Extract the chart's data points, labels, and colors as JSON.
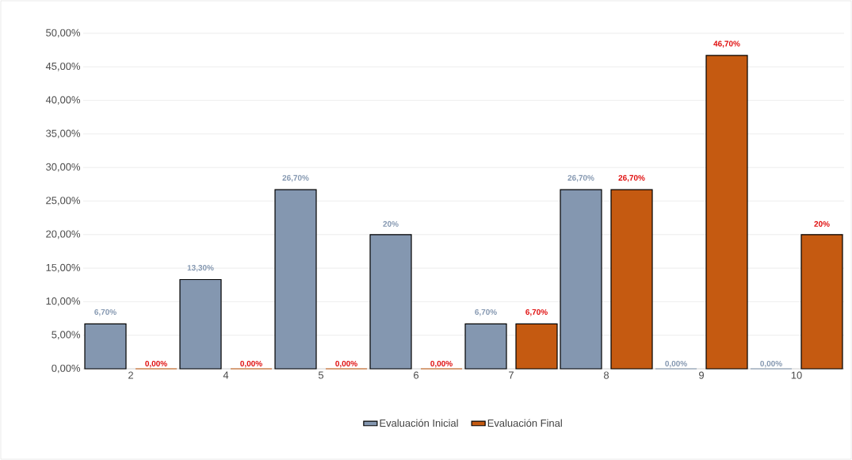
{
  "chart_data": {
    "type": "bar",
    "categories": [
      "2",
      "4",
      "5",
      "6",
      "7",
      "8",
      "9",
      "10"
    ],
    "series": [
      {
        "name": "Evaluación Inicial",
        "color": "#8497b0",
        "values": [
          6.7,
          13.3,
          26.7,
          20,
          6.7,
          26.7,
          0,
          0
        ],
        "value_labels": [
          "6,70%",
          "13,30%",
          "26,70%",
          "20%",
          "6,70%",
          "26,70%",
          "0,00%",
          "0,00%"
        ]
      },
      {
        "name": "Evaluación Final",
        "color": "#c55a11",
        "values": [
          0,
          0,
          0,
          0,
          6.7,
          26.7,
          46.7,
          20
        ],
        "value_labels": [
          "0,00%",
          "0,00%",
          "0,00%",
          "0,00%",
          "6,70%",
          "26,70%",
          "46,70%",
          "20%"
        ]
      }
    ],
    "ylim": [
      0,
      50
    ],
    "yticks": [
      {
        "value": 0,
        "label": "0,00%"
      },
      {
        "value": 5,
        "label": "5,00%"
      },
      {
        "value": 10,
        "label": "10,00%"
      },
      {
        "value": 15,
        "label": "15,00%"
      },
      {
        "value": 20,
        "label": "20,00%"
      },
      {
        "value": 25,
        "label": "25,00%"
      },
      {
        "value": 30,
        "label": "30,00%"
      },
      {
        "value": 35,
        "label": "35,00%"
      },
      {
        "value": 40,
        "label": "40,00%"
      },
      {
        "value": 45,
        "label": "45,00%"
      },
      {
        "value": 50,
        "label": "50,00%"
      }
    ],
    "grid": "y",
    "legend": "bottom"
  }
}
